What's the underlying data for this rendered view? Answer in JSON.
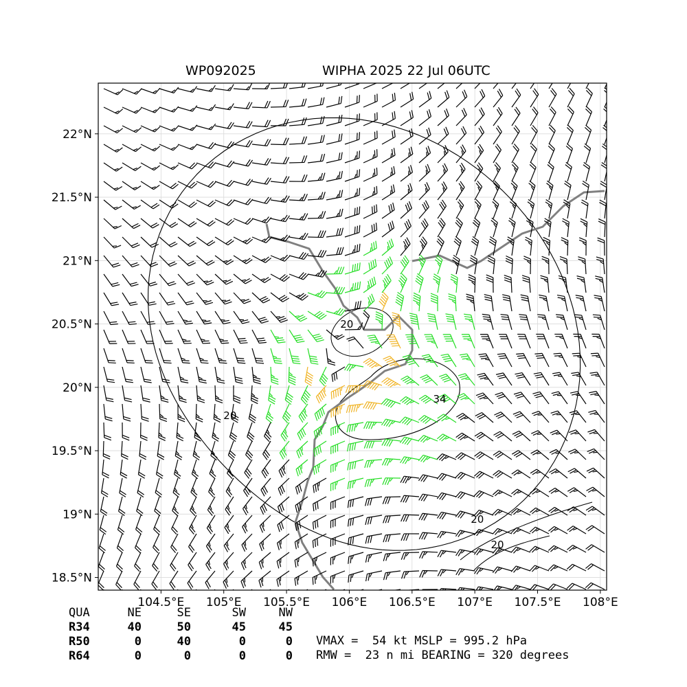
{
  "header": {
    "storm_id": "WP092025",
    "storm_title": "WIPHA 2025 22 Jul 06UTC"
  },
  "chart_data": {
    "type": "wind-barb-map",
    "x_ticks": [
      "104.5°E",
      "105°E",
      "105.5°E",
      "106°E",
      "106.5°E",
      "107°E",
      "107.5°E",
      "108°E"
    ],
    "x_tick_values": [
      104.5,
      105.0,
      105.5,
      106.0,
      106.5,
      107.0,
      107.5,
      108.0
    ],
    "y_ticks": [
      "22°N",
      "21.5°N",
      "21°N",
      "20.5°N",
      "20°N",
      "19.5°N",
      "19°N",
      "18.5°N"
    ],
    "y_tick_values": [
      22.0,
      21.5,
      21.0,
      20.5,
      20.0,
      19.5,
      19.0,
      18.5
    ],
    "xlim": [
      104.0,
      108.05
    ],
    "ylim": [
      18.4,
      22.4
    ],
    "grid": true,
    "center": {
      "lon": 106.0,
      "lat": 20.35
    },
    "rmw_deg": 0.38,
    "contour_labels": [
      {
        "text": "20",
        "lon": 105.98,
        "lat": 20.47
      },
      {
        "text": "20",
        "lon": 105.05,
        "lat": 19.75
      },
      {
        "text": "34",
        "lon": 106.72,
        "lat": 19.88
      },
      {
        "text": "20",
        "lon": 107.02,
        "lat": 18.93
      },
      {
        "text": "20",
        "lon": 107.18,
        "lat": 18.73
      }
    ],
    "barb_colors": {
      "below34": "#000000",
      "r34": "#22dd22",
      "r50": "#f0b323",
      "r64": "#ee6600"
    },
    "contour_color": "#000000",
    "coast_color": "#808080"
  },
  "wind_radii_table": {
    "header": [
      "QUA",
      "NE",
      "SE",
      "SW",
      "NW"
    ],
    "rows": [
      {
        "label": "R34",
        "values": [
          "40",
          "50",
          "45",
          "45"
        ]
      },
      {
        "label": "R50",
        "values": [
          "0",
          "40",
          "0",
          "0"
        ]
      },
      {
        "label": "R64",
        "values": [
          "0",
          "0",
          "0",
          "0"
        ]
      }
    ]
  },
  "stats": {
    "line1": "VMAX =  54 kt MSLP = 995.2 hPa",
    "line2": "RMW =  23 n mi BEARING = 320 degrees"
  }
}
